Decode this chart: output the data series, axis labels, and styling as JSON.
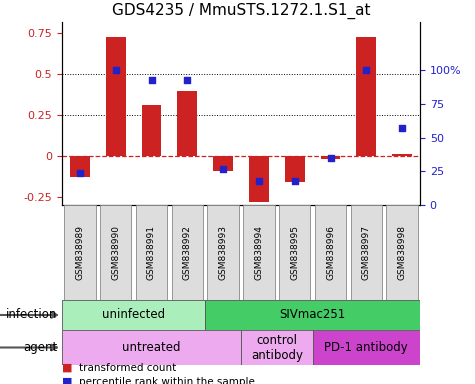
{
  "title": "GDS4235 / MmuSTS.1272.1.S1_at",
  "samples": [
    "GSM838989",
    "GSM838990",
    "GSM838991",
    "GSM838992",
    "GSM838993",
    "GSM838994",
    "GSM838995",
    "GSM838996",
    "GSM838997",
    "GSM838998"
  ],
  "transformed_count": [
    -0.13,
    0.73,
    0.31,
    0.4,
    -0.09,
    -0.28,
    -0.16,
    -0.02,
    0.73,
    0.01
  ],
  "percentile_rank": [
    24,
    100,
    93,
    93,
    27,
    18,
    18,
    35,
    100,
    57
  ],
  "bar_color": "#cc2222",
  "dot_color": "#2222cc",
  "ylim_left": [
    -0.3,
    0.82
  ],
  "ylim_right": [
    0,
    136
  ],
  "yticks_left": [
    -0.25,
    0.0,
    0.25,
    0.5,
    0.75
  ],
  "ytick_labels_left": [
    "-0.25",
    "0",
    "0.25",
    "0.5",
    "0.75"
  ],
  "yticks_right": [
    0,
    25,
    50,
    75,
    100
  ],
  "ytick_labels_right": [
    "0",
    "25",
    "50",
    "75",
    "100%"
  ],
  "dotted_lines": [
    0.25,
    0.5
  ],
  "infection_groups": [
    {
      "label": "uninfected",
      "span": [
        0,
        4
      ],
      "color": "#aaeebb"
    },
    {
      "label": "SIVmac251",
      "span": [
        4,
        10
      ],
      "color": "#44cc66"
    }
  ],
  "agent_groups": [
    {
      "label": "untreated",
      "span": [
        0,
        5
      ],
      "color": "#eeaaee"
    },
    {
      "label": "control\nantibody",
      "span": [
        5,
        7
      ],
      "color": "#eeaaee"
    },
    {
      "label": "PD-1 antibody",
      "span": [
        7,
        10
      ],
      "color": "#cc44cc"
    }
  ],
  "legend_items": [
    {
      "label": "transformed count",
      "color": "#cc2222"
    },
    {
      "label": "percentile rank within the sample",
      "color": "#2222cc"
    }
  ],
  "background_color": "#ffffff",
  "sample_box_color": "#dddddd",
  "tick_fontsize": 8,
  "title_fontsize": 11
}
